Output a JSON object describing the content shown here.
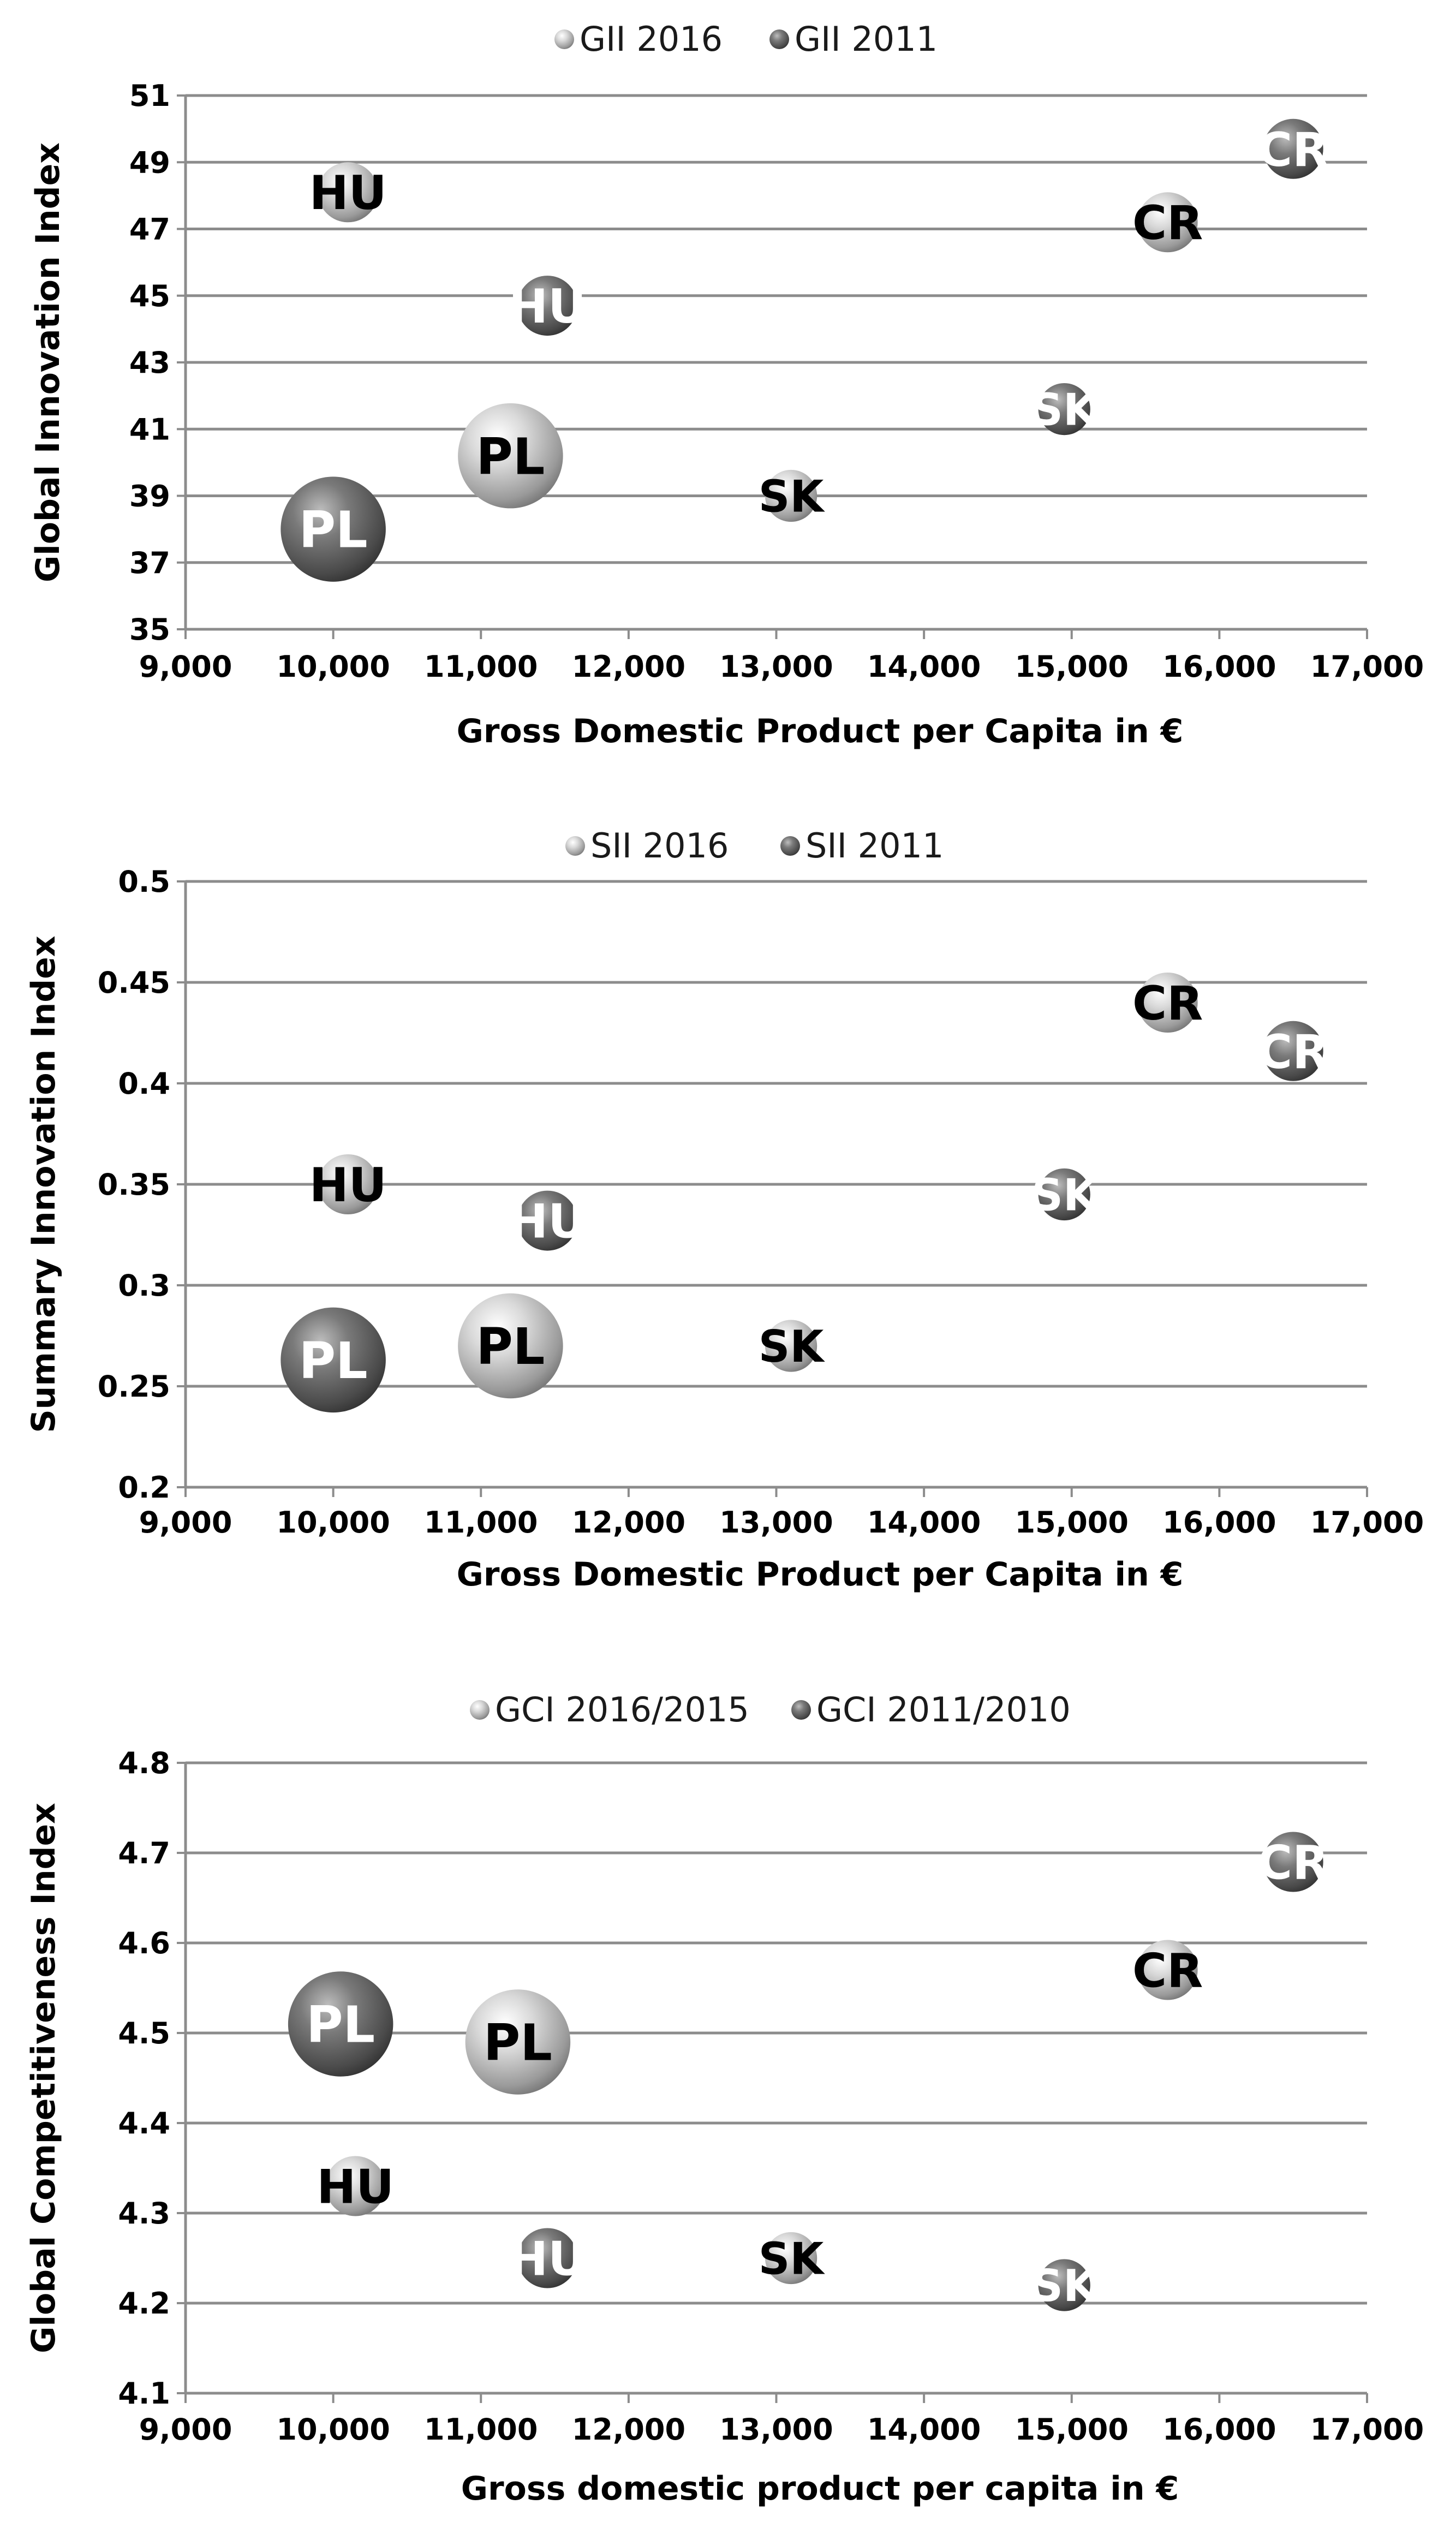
{
  "chart_data": [
    {
      "type": "bubble",
      "legend": [
        {
          "label": "GII 2016",
          "color": "#c4c4c4"
        },
        {
          "label": "GII 2011",
          "color": "#707070"
        }
      ],
      "xlabel": "Gross Domestic Product per Capita in €",
      "ylabel": "Global Innovation Index",
      "xlim": [
        9000,
        17000
      ],
      "ylim": [
        35,
        51
      ],
      "xticks": [
        "9,000",
        "10,000",
        "11,000",
        "12,000",
        "13,000",
        "14,000",
        "15,000",
        "16,000",
        "17,000"
      ],
      "yticks": [
        "35",
        "37",
        "39",
        "41",
        "43",
        "45",
        "47",
        "49",
        "51"
      ],
      "grid": true,
      "points": [
        {
          "label": "HU",
          "series": "GII 2016",
          "x": 10100,
          "y": 48.1,
          "size": 1.0
        },
        {
          "label": "CR",
          "series": "GII 2016",
          "x": 15650,
          "y": 47.2,
          "size": 1.0
        },
        {
          "label": "PL",
          "series": "GII 2016",
          "x": 11200,
          "y": 40.2,
          "size": 2.2
        },
        {
          "label": "SK",
          "series": "GII 2016",
          "x": 13100,
          "y": 39.0,
          "size": 0.75
        },
        {
          "label": "HU",
          "series": "GII 2011",
          "x": 11450,
          "y": 44.7,
          "size": 1.0
        },
        {
          "label": "CR",
          "series": "GII 2011",
          "x": 16500,
          "y": 49.4,
          "size": 1.0
        },
        {
          "label": "SK",
          "series": "GII 2011",
          "x": 14950,
          "y": 41.6,
          "size": 0.75
        },
        {
          "label": "PL",
          "series": "GII 2011",
          "x": 10000,
          "y": 38.0,
          "size": 2.2
        }
      ]
    },
    {
      "type": "bubble",
      "legend": [
        {
          "label": "SII 2016",
          "color": "#c4c4c4"
        },
        {
          "label": "SII 2011",
          "color": "#707070"
        }
      ],
      "xlabel": "Gross Domestic Product per Capita in €",
      "ylabel": "Summary Innovation Index",
      "xlim": [
        9000,
        17000
      ],
      "ylim": [
        0.2,
        0.5
      ],
      "xticks": [
        "9,000",
        "10,000",
        "11,000",
        "12,000",
        "13,000",
        "14,000",
        "15,000",
        "16,000",
        "17,000"
      ],
      "yticks": [
        "0.2",
        "0.25",
        "0.3",
        "0.35",
        "0.4",
        "0.45",
        "0.5"
      ],
      "grid": true,
      "points": [
        {
          "label": "HU",
          "series": "SII 2016",
          "x": 10100,
          "y": 0.35,
          "size": 1.0
        },
        {
          "label": "CR",
          "series": "SII 2016",
          "x": 15650,
          "y": 0.44,
          "size": 1.0
        },
        {
          "label": "PL",
          "series": "SII 2016",
          "x": 11200,
          "y": 0.27,
          "size": 2.2
        },
        {
          "label": "SK",
          "series": "SII 2016",
          "x": 13100,
          "y": 0.27,
          "size": 0.75
        },
        {
          "label": "HU",
          "series": "SII 2011",
          "x": 11450,
          "y": 0.332,
          "size": 1.0
        },
        {
          "label": "CR",
          "series": "SII 2011",
          "x": 16500,
          "y": 0.416,
          "size": 1.0
        },
        {
          "label": "SK",
          "series": "SII 2011",
          "x": 14950,
          "y": 0.345,
          "size": 0.75
        },
        {
          "label": "PL",
          "series": "SII 2011",
          "x": 10000,
          "y": 0.263,
          "size": 2.2
        }
      ]
    },
    {
      "type": "bubble",
      "legend": [
        {
          "label": "GCI 2016/2015",
          "color": "#c4c4c4"
        },
        {
          "label": "GCI 2011/2010",
          "color": "#707070"
        }
      ],
      "xlabel": "Gross domestic product per capita in €",
      "ylabel": "Global Competitiveness Index",
      "xlim": [
        9000,
        17000
      ],
      "ylim": [
        4.1,
        4.8
      ],
      "xticks": [
        "9,000",
        "10,000",
        "11,000",
        "12,000",
        "13,000",
        "14,000",
        "15,000",
        "16,000",
        "17,000"
      ],
      "yticks": [
        "4.1",
        "4.2",
        "4.3",
        "4.4",
        "4.5",
        "4.6",
        "4.7",
        "4.8"
      ],
      "grid": true,
      "points": [
        {
          "label": "HU",
          "series": "GCI 2016/2015",
          "x": 10150,
          "y": 4.33,
          "size": 1.0
        },
        {
          "label": "CR",
          "series": "GCI 2016/2015",
          "x": 15650,
          "y": 4.57,
          "size": 1.0
        },
        {
          "label": "PL",
          "series": "GCI 2016/2015",
          "x": 11250,
          "y": 4.49,
          "size": 2.2
        },
        {
          "label": "SK",
          "series": "GCI 2016/2015",
          "x": 13100,
          "y": 4.25,
          "size": 0.75
        },
        {
          "label": "HU",
          "series": "GCI 2011/2010",
          "x": 11450,
          "y": 4.25,
          "size": 1.0
        },
        {
          "label": "CR",
          "series": "GCI 2011/2010",
          "x": 16500,
          "y": 4.69,
          "size": 1.0
        },
        {
          "label": "SK",
          "series": "GCI 2011/2010",
          "x": 14950,
          "y": 4.22,
          "size": 0.75
        },
        {
          "label": "PL",
          "series": "GCI 2011/2010",
          "x": 10050,
          "y": 4.51,
          "size": 2.2
        }
      ]
    }
  ]
}
